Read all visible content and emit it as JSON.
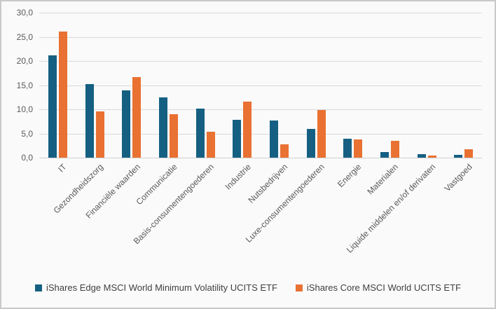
{
  "chart_data": {
    "type": "bar",
    "title": "",
    "categories": [
      "IT",
      "Gezondheidszorg",
      "Financiële waarden",
      "Communicatie",
      "Basis-consumentengoederen",
      "Industrie",
      "Nutsbedrijven",
      "Luxe-consumentengoederen",
      "Energie",
      "Materialen",
      "Liquide middelen en/of derivaten",
      "Vastgoed"
    ],
    "series": [
      {
        "name": "iShares Edge MSCI World Minimum Volatility UCITS ETF",
        "color": "#156082",
        "values": [
          21.2,
          15.2,
          13.9,
          12.4,
          10.2,
          7.8,
          7.7,
          6.0,
          3.9,
          1.1,
          0.7,
          0.6
        ]
      },
      {
        "name": "iShares Core MSCI World UCITS ETF",
        "color": "#E97132",
        "values": [
          26.1,
          9.6,
          16.6,
          9.0,
          5.4,
          11.6,
          2.7,
          9.9,
          3.7,
          3.5,
          0.5,
          1.8
        ]
      }
    ],
    "xlabel": "",
    "ylabel": "",
    "ylim": [
      0,
      30
    ],
    "ytick_step": 5,
    "ytick_labels": [
      "0,0",
      "5,0",
      "10,0",
      "15,0",
      "20,0",
      "25,0",
      "30,0"
    ],
    "decimal_separator": ",",
    "grid": true,
    "legend_position": "bottom"
  },
  "style": {
    "background": "#FAFAFA",
    "border_color": "#C9C9C9",
    "gridline_color": "#D9D9D9",
    "axis_text_color": "#595959",
    "legend_text_color": "#404040"
  }
}
